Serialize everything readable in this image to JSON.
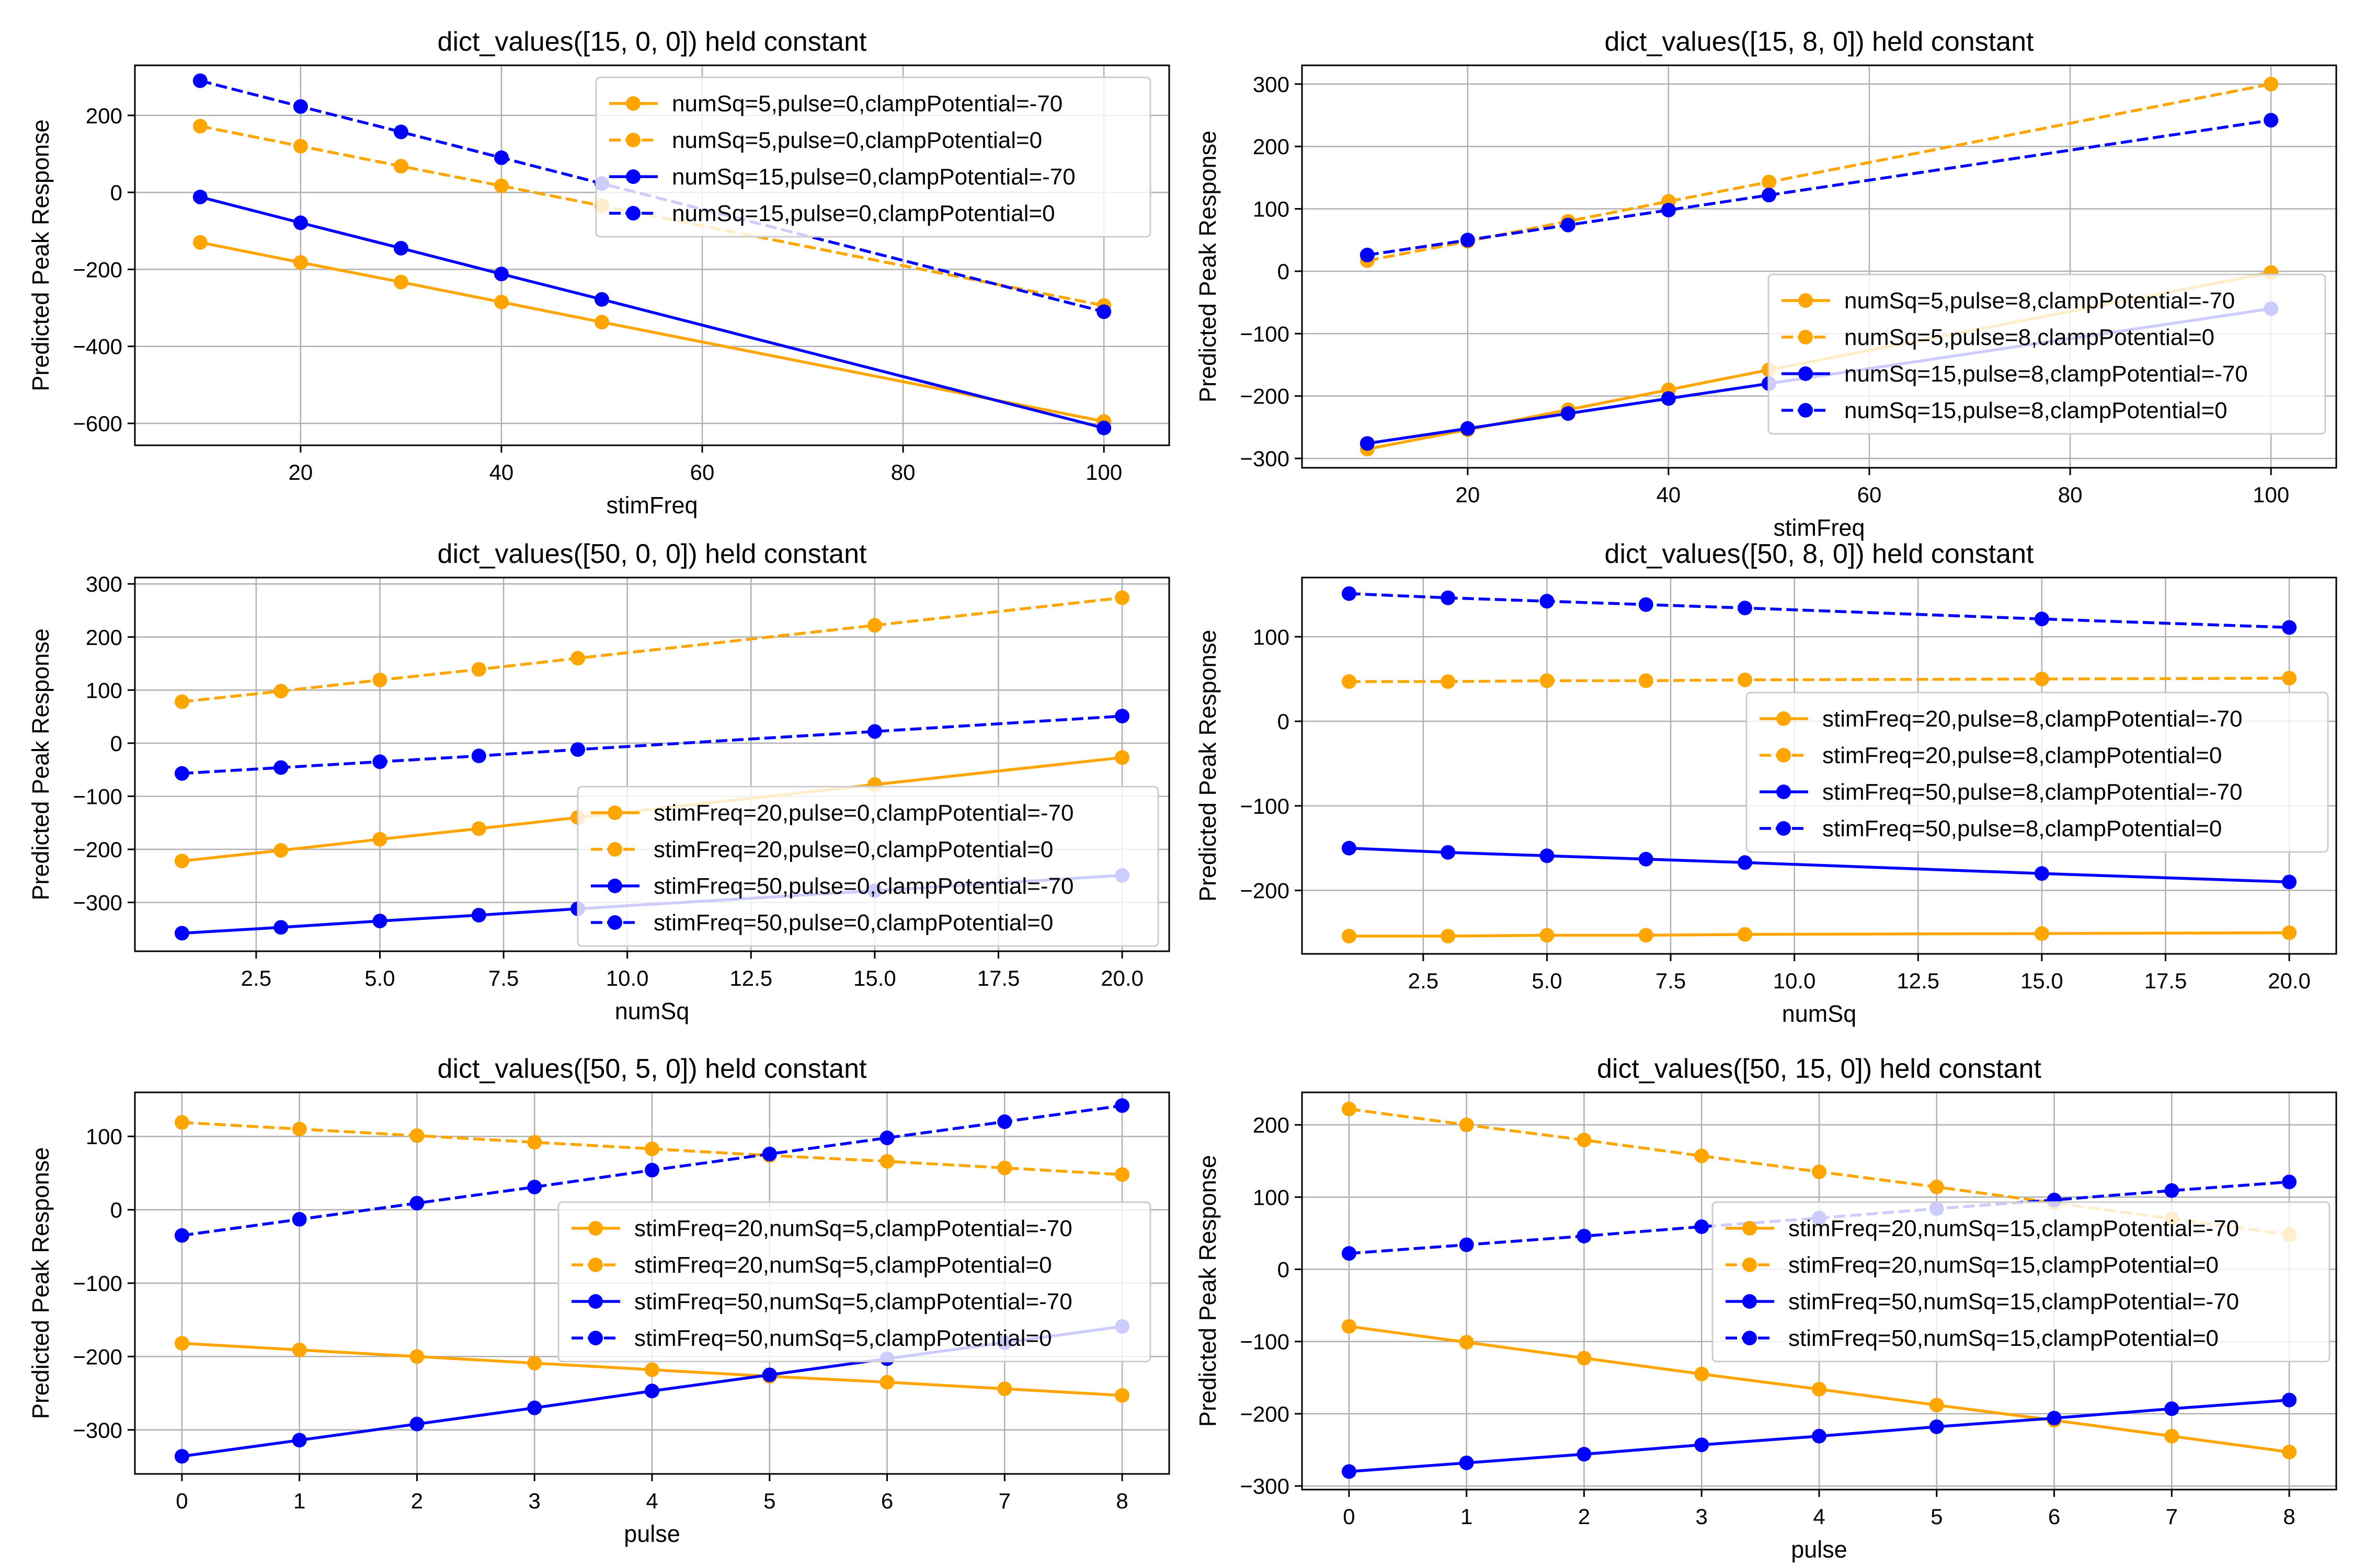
{
  "figure": {
    "background": "#ffffff"
  },
  "colors": {
    "orange": "#ffa500",
    "blue": "#0000ff",
    "grid": "#b0b0b0",
    "axis": "#000000",
    "legend_border": "#cccccc"
  },
  "ylabel_common": "Predicted Peak Response",
  "chart_data": [
    {
      "type": "line",
      "title": "dict_values([15, 0, 0]) held constant",
      "xlabel": "stimFreq",
      "ylabel": "Predicted Peak Response",
      "xlim": [
        3.5,
        106.5
      ],
      "ylim": [
        -657,
        330
      ],
      "xticks": [
        20,
        40,
        60,
        80,
        100
      ],
      "xtick_labels": [
        "20",
        "40",
        "60",
        "80",
        "100"
      ],
      "yticks": [
        -600,
        -400,
        -200,
        0,
        200
      ],
      "ytick_labels": [
        "−600",
        "−400",
        "−200",
        "0",
        "200"
      ],
      "grid": true,
      "legend_position": "top-right",
      "x": [
        10,
        20,
        30,
        40,
        50,
        100
      ],
      "series": [
        {
          "name": "numSq=5,pulse=0,clampPotential=-70",
          "color": "#ffa500",
          "dashed": false,
          "values": [
            -130,
            -182,
            -233,
            -285,
            -337,
            -595
          ]
        },
        {
          "name": "numSq=5,pulse=0,clampPotential=0",
          "color": "#ffa500",
          "dashed": true,
          "values": [
            172,
            120,
            68,
            17,
            -35,
            -294
          ]
        },
        {
          "name": "numSq=15,pulse=0,clampPotential=-70",
          "color": "#0000ff",
          "dashed": false,
          "values": [
            -12,
            -79,
            -145,
            -212,
            -278,
            -612
          ]
        },
        {
          "name": "numSq=15,pulse=0,clampPotential=0",
          "color": "#0000ff",
          "dashed": true,
          "values": [
            290,
            223,
            157,
            90,
            23,
            -310
          ]
        }
      ]
    },
    {
      "type": "line",
      "title": "dict_values([15, 8, 0]) held constant",
      "xlabel": "stimFreq",
      "ylabel": "Predicted Peak Response",
      "xlim": [
        3.5,
        106.5
      ],
      "ylim": [
        -315,
        330
      ],
      "xticks": [
        20,
        40,
        60,
        80,
        100
      ],
      "xtick_labels": [
        "20",
        "40",
        "60",
        "80",
        "100"
      ],
      "yticks": [
        -300,
        -200,
        -100,
        0,
        100,
        200,
        300
      ],
      "ytick_labels": [
        "−300",
        "−200",
        "−100",
        "0",
        "100",
        "200",
        "300"
      ],
      "grid": true,
      "legend_position": "lower-right",
      "x": [
        10,
        20,
        30,
        40,
        50,
        100
      ],
      "series": [
        {
          "name": "numSq=5,pulse=8,clampPotential=-70",
          "color": "#ffa500",
          "dashed": false,
          "values": [
            -285,
            -254,
            -222,
            -190,
            -158,
            -2
          ]
        },
        {
          "name": "numSq=5,pulse=8,clampPotential=0",
          "color": "#ffa500",
          "dashed": true,
          "values": [
            17,
            48,
            80,
            112,
            143,
            300
          ]
        },
        {
          "name": "numSq=15,pulse=8,clampPotential=-70",
          "color": "#0000ff",
          "dashed": false,
          "values": [
            -276,
            -252,
            -228,
            -204,
            -180,
            -60
          ]
        },
        {
          "name": "numSq=15,pulse=8,clampPotential=0",
          "color": "#0000ff",
          "dashed": true,
          "values": [
            26,
            50,
            74,
            98,
            122,
            242
          ]
        }
      ]
    },
    {
      "type": "line",
      "title": "dict_values([50, 0, 0]) held constant",
      "xlabel": "numSq",
      "ylabel": "Predicted Peak Response",
      "xlim": [
        0.05,
        20.95
      ],
      "ylim": [
        -392,
        312
      ],
      "xticks": [
        2.5,
        5.0,
        7.5,
        10.0,
        12.5,
        15.0,
        17.5,
        20.0
      ],
      "xtick_labels": [
        "2.5",
        "5.0",
        "7.5",
        "10.0",
        "12.5",
        "15.0",
        "17.5",
        "20.0"
      ],
      "yticks": [
        -300,
        -200,
        -100,
        0,
        100,
        200,
        300
      ],
      "ytick_labels": [
        "−300",
        "−200",
        "−100",
        "0",
        "100",
        "200",
        "300"
      ],
      "grid": true,
      "legend_position": "lower-right",
      "x": [
        1,
        3,
        5,
        7,
        9,
        15,
        20
      ],
      "series": [
        {
          "name": "stimFreq=20,pulse=0,clampPotential=-70",
          "color": "#ffa500",
          "dashed": false,
          "values": [
            -222,
            -202,
            -181,
            -161,
            -140,
            -78,
            -27
          ]
        },
        {
          "name": "stimFreq=20,pulse=0,clampPotential=0",
          "color": "#ffa500",
          "dashed": true,
          "values": [
            78,
            98,
            119,
            139,
            160,
            222,
            274
          ]
        },
        {
          "name": "stimFreq=50,pulse=0,clampPotential=-70",
          "color": "#0000ff",
          "dashed": false,
          "values": [
            -358,
            -347,
            -335,
            -324,
            -312,
            -278,
            -249
          ]
        },
        {
          "name": "stimFreq=50,pulse=0,clampPotential=0",
          "color": "#0000ff",
          "dashed": true,
          "values": [
            -57,
            -46,
            -35,
            -24,
            -12,
            22,
            51
          ]
        }
      ]
    },
    {
      "type": "line",
      "title": "dict_values([50, 8, 0]) held constant",
      "xlabel": "numSq",
      "ylabel": "Predicted Peak Response",
      "xlim": [
        0.05,
        20.95
      ],
      "ylim": [
        -275,
        170
      ],
      "xticks": [
        2.5,
        5.0,
        7.5,
        10.0,
        12.5,
        15.0,
        17.5,
        20.0
      ],
      "xtick_labels": [
        "2.5",
        "5.0",
        "7.5",
        "10.0",
        "12.5",
        "15.0",
        "17.5",
        "20.0"
      ],
      "yticks": [
        -200,
        -100,
        0,
        100
      ],
      "ytick_labels": [
        "−200",
        "−100",
        "0",
        "100"
      ],
      "grid": true,
      "legend_position": "right",
      "x": [
        1,
        3,
        5,
        7,
        9,
        15,
        20
      ],
      "series": [
        {
          "name": "stimFreq=20,pulse=8,clampPotential=-70",
          "color": "#ffa500",
          "dashed": false,
          "values": [
            -254,
            -254,
            -253,
            -253,
            -252,
            -251,
            -250
          ]
        },
        {
          "name": "stimFreq=20,pulse=8,clampPotential=0",
          "color": "#ffa500",
          "dashed": true,
          "values": [
            47,
            47,
            48,
            48,
            49,
            50,
            51
          ]
        },
        {
          "name": "stimFreq=50,pulse=8,clampPotential=-70",
          "color": "#0000ff",
          "dashed": false,
          "values": [
            -150,
            -155,
            -159,
            -163,
            -167,
            -180,
            -190
          ]
        },
        {
          "name": "stimFreq=50,pulse=8,clampPotential=0",
          "color": "#0000ff",
          "dashed": true,
          "values": [
            151,
            146,
            142,
            138,
            134,
            121,
            111
          ]
        }
      ]
    },
    {
      "type": "line",
      "title": "dict_values([50, 5, 0]) held constant",
      "xlabel": "pulse",
      "ylabel": "Predicted Peak Response",
      "xlim": [
        -0.4,
        8.4
      ],
      "ylim": [
        -360,
        160
      ],
      "xticks": [
        0,
        1,
        2,
        3,
        4,
        5,
        6,
        7,
        8
      ],
      "xtick_labels": [
        "0",
        "1",
        "2",
        "3",
        "4",
        "5",
        "6",
        "7",
        "8"
      ],
      "yticks": [
        -300,
        -200,
        -100,
        0,
        100
      ],
      "ytick_labels": [
        "−300",
        "−200",
        "−100",
        "0",
        "100"
      ],
      "grid": true,
      "legend_position": "right",
      "x": [
        0,
        1,
        2,
        3,
        4,
        5,
        6,
        7,
        8
      ],
      "series": [
        {
          "name": "stimFreq=20,numSq=5,clampPotential=-70",
          "color": "#ffa500",
          "dashed": false,
          "values": [
            -182,
            -191,
            -200,
            -209,
            -218,
            -227,
            -235,
            -244,
            -253
          ]
        },
        {
          "name": "stimFreq=20,numSq=5,clampPotential=0",
          "color": "#ffa500",
          "dashed": true,
          "values": [
            119,
            110,
            101,
            92,
            83,
            74,
            66,
            57,
            48
          ]
        },
        {
          "name": "stimFreq=50,numSq=5,clampPotential=-70",
          "color": "#0000ff",
          "dashed": false,
          "values": [
            -336,
            -314,
            -292,
            -270,
            -247,
            -225,
            -203,
            -181,
            -159
          ]
        },
        {
          "name": "stimFreq=50,numSq=5,clampPotential=0",
          "color": "#0000ff",
          "dashed": true,
          "values": [
            -35,
            -13,
            9,
            31,
            54,
            76,
            98,
            120,
            142
          ]
        }
      ]
    },
    {
      "type": "line",
      "title": "dict_values([50, 15, 0]) held constant",
      "xlabel": "pulse",
      "ylabel": "Predicted Peak Response",
      "xlim": [
        -0.4,
        8.4
      ],
      "ylim": [
        -305,
        245
      ],
      "xticks": [
        0,
        1,
        2,
        3,
        4,
        5,
        6,
        7,
        8
      ],
      "xtick_labels": [
        "0",
        "1",
        "2",
        "3",
        "4",
        "5",
        "6",
        "7",
        "8"
      ],
      "yticks": [
        -300,
        -200,
        -100,
        0,
        100,
        200
      ],
      "ytick_labels": [
        "−300",
        "−200",
        "−100",
        "0",
        "100",
        "200"
      ],
      "grid": true,
      "legend_position": "right",
      "x": [
        0,
        1,
        2,
        3,
        4,
        5,
        6,
        7,
        8
      ],
      "series": [
        {
          "name": "stimFreq=20,numSq=15,clampPotential=-70",
          "color": "#ffa500",
          "dashed": false,
          "values": [
            -79,
            -101,
            -123,
            -145,
            -166,
            -188,
            -209,
            -231,
            -253
          ]
        },
        {
          "name": "stimFreq=20,numSq=15,clampPotential=0",
          "color": "#ffa500",
          "dashed": true,
          "values": [
            222,
            200,
            179,
            157,
            135,
            114,
            92,
            70,
            48
          ]
        },
        {
          "name": "stimFreq=50,numSq=15,clampPotential=-70",
          "color": "#0000ff",
          "dashed": false,
          "values": [
            -280,
            -268,
            -256,
            -243,
            -231,
            -218,
            -206,
            -193,
            -181
          ]
        },
        {
          "name": "stimFreq=50,numSq=15,clampPotential=0",
          "color": "#0000ff",
          "dashed": true,
          "values": [
            22,
            34,
            46,
            59,
            71,
            84,
            96,
            109,
            121
          ]
        }
      ]
    }
  ]
}
